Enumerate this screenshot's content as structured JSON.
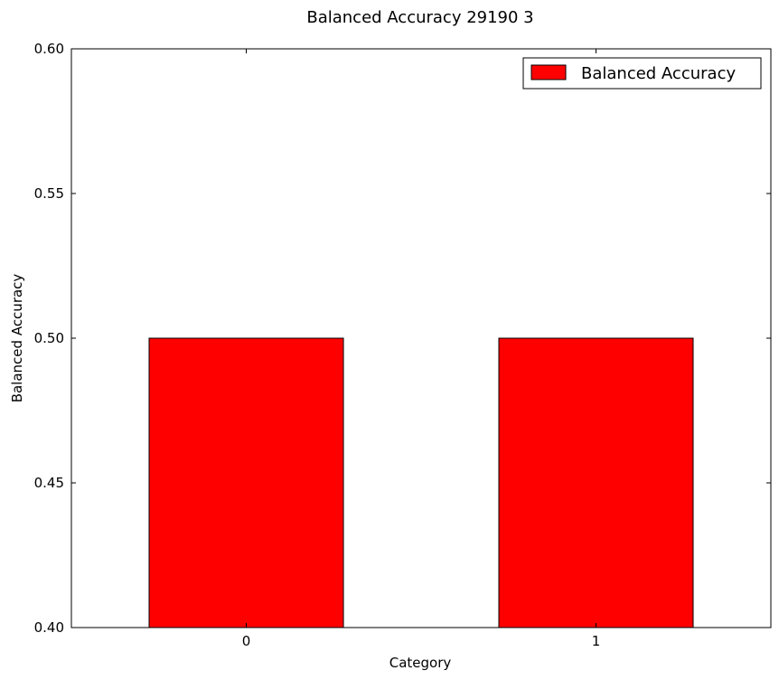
{
  "chart_data": {
    "type": "bar",
    "title": "Balanced Accuracy 29190 3",
    "xlabel": "Category",
    "ylabel": "Balanced Accuracy",
    "categories": [
      "0",
      "1"
    ],
    "series": [
      {
        "name": "Balanced Accuracy",
        "values": [
          0.5,
          0.5
        ],
        "color": "#ff0000"
      }
    ],
    "ylim": [
      0.4,
      0.6
    ],
    "yticks": [
      "0.40",
      "0.45",
      "0.50",
      "0.55",
      "0.60"
    ],
    "ytick_values": [
      0.4,
      0.45,
      0.5,
      0.55,
      0.6
    ],
    "grid": false,
    "legend_position": "top-right",
    "bar_edge_color": "#000000"
  }
}
